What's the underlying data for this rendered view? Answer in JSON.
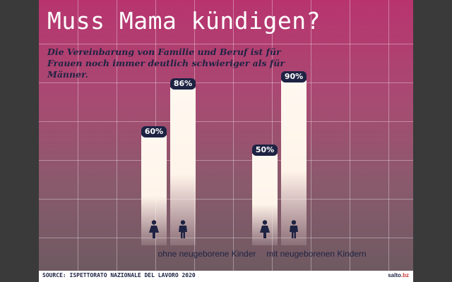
{
  "title": "Muss Mama kündigen?",
  "subtitle": "Die Vereinbarung von Familie und Beruf ist für Frauen noch immer deutlich schwieriger als für Männer.",
  "source": "SOURCE: ISPETTORATO NAZIONALE DEL LAVORO 2020",
  "logo": {
    "main": "salto",
    "accent": ".bz"
  },
  "colors": {
    "top": "#b8346f",
    "bottom": "#6b5a60",
    "bar": "#fff8f0",
    "label_bg": "#1e2343",
    "text": "#1e2343"
  },
  "chart_data": {
    "type": "bar",
    "categories": [
      "ohne neugeborene Kinder",
      "mit neugeborenen Kindern"
    ],
    "series": [
      {
        "values": [
          60,
          50
        ],
        "labels": [
          "60%",
          "50%"
        ],
        "icon": "woman-icon"
      },
      {
        "values": [
          86,
          90
        ],
        "labels": [
          "86%",
          "90%"
        ],
        "icon": "man-icon"
      }
    ],
    "ylim": [
      0,
      100
    ],
    "grid": true,
    "legend": "none"
  }
}
